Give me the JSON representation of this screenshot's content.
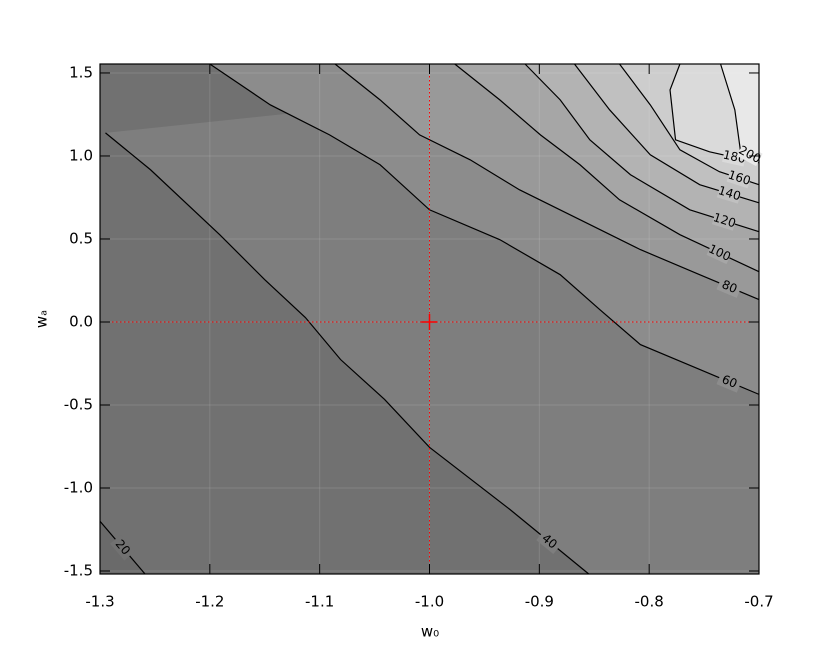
{
  "chart_data": {
    "type": "contour",
    "xlabel": "w₀",
    "ylabel": "wₐ",
    "xlim": [
      -1.3,
      -0.7
    ],
    "ylim": [
      -1.518,
      1.554
    ],
    "xticks": [
      -1.3,
      -1.2,
      -1.1,
      {
        "value": -1.0,
        "label": "-1.0"
      },
      -0.9,
      -0.8,
      -0.7
    ],
    "yticks": [
      -1.5,
      {
        "value": -1.0,
        "label": "-1.0"
      },
      -0.5,
      {
        "value": 0.0,
        "label": "0.0"
      },
      0.5,
      {
        "value": 1.0,
        "label": "1.0"
      },
      1.5
    ],
    "grid": true,
    "line_color": "#000000",
    "base_color": "#6a6a6a",
    "contours": [
      {
        "level": 20,
        "color": "#717171",
        "x": [
          -1.3,
          -1.259
        ],
        "y": [
          -1.2,
          -1.518
        ]
      },
      {
        "level": 40,
        "color": "#7e7e7e",
        "x": [
          -1.295,
          -1.254,
          -1.191,
          -1.15,
          -1.113,
          -1.081,
          -1.041,
          -1.0,
          -0.927,
          -0.855
        ],
        "y": [
          1.139,
          0.917,
          0.526,
          0.255,
          0.027,
          -0.226,
          -0.466,
          -0.755,
          -1.128,
          -1.518
        ]
      },
      {
        "level": 60,
        "color": "#8c8c8c",
        "x": [
          -1.2,
          -1.145,
          -1.091,
          -1.045,
          -1.0,
          -0.936,
          -0.881,
          -0.845,
          -0.808,
          -0.754,
          -0.7
        ],
        "y": [
          1.554,
          1.308,
          1.127,
          0.947,
          0.676,
          0.496,
          0.285,
          0.075,
          -0.136,
          -0.286,
          -0.436
        ]
      },
      {
        "level": 80,
        "color": "#999999",
        "x": [
          -1.086,
          -1.045,
          -1.009,
          -0.963,
          -0.918,
          -0.863,
          -0.808,
          -0.754,
          -0.7
        ],
        "y": [
          1.554,
          1.338,
          1.127,
          0.977,
          0.796,
          0.616,
          0.436,
          0.285,
          0.135
        ]
      },
      {
        "level": 100,
        "color": "#a6a6a6",
        "x": [
          -0.977,
          -0.936,
          -0.899,
          -0.863,
          -0.827,
          -0.772,
          -0.7
        ],
        "y": [
          1.554,
          1.338,
          1.127,
          0.947,
          0.736,
          0.526,
          0.303
        ]
      },
      {
        "level": 120,
        "color": "#b3b3b3",
        "x": [
          -0.913,
          -0.881,
          -0.854,
          -0.817,
          -0.763,
          -0.7
        ],
        "y": [
          1.554,
          1.338,
          1.097,
          0.887,
          0.676,
          0.544
        ]
      },
      {
        "level": 140,
        "color": "#c0c0c0",
        "x": [
          -0.868,
          -0.836,
          -0.799,
          -0.754,
          -0.7
        ],
        "y": [
          1.554,
          1.278,
          1.007,
          0.827,
          0.718
        ]
      },
      {
        "level": 160,
        "color": "#cdcdcd",
        "x": [
          -0.827,
          -0.799,
          -0.772,
          -0.736,
          -0.7
        ],
        "y": [
          1.554,
          1.308,
          1.037,
          0.905,
          0.827
        ]
      },
      {
        "level": 180,
        "color": "#dadada",
        "x": [
          -0.772,
          -0.781,
          -0.776,
          -0.745,
          -0.7
        ],
        "y": [
          1.554,
          1.398,
          1.097,
          1.025,
          0.959
        ]
      },
      {
        "level": 200,
        "color": "#e8e8e8",
        "x": [
          -0.735,
          -0.722,
          -0.717,
          -0.7
        ],
        "y": [
          1.554,
          1.278,
          1.037,
          0.977
        ]
      }
    ],
    "marker": {
      "x": -1.0,
      "y": 0.0,
      "color": "#ff0000"
    }
  }
}
